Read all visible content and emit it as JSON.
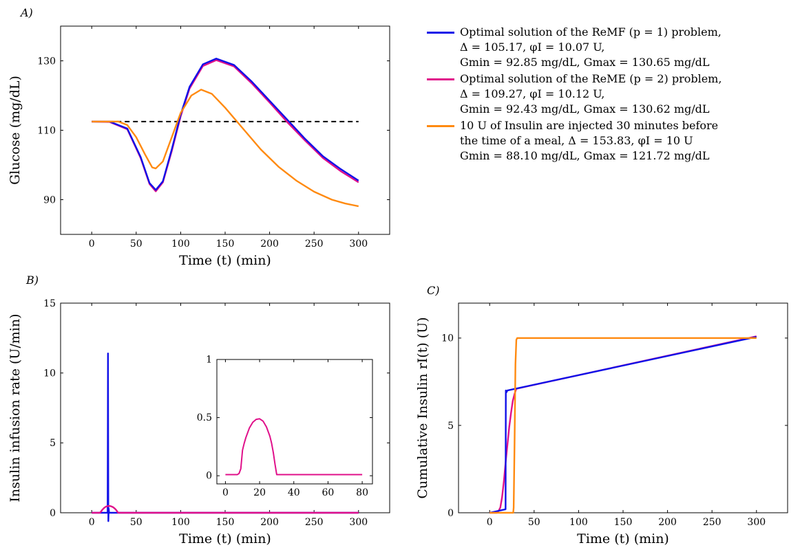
{
  "colors": {
    "blue": "#1010e8",
    "magenta": "#e0108a",
    "orange": "#ff8a10",
    "black": "#000000"
  },
  "panels": {
    "a": "A)",
    "b": "B)",
    "c": "C)"
  },
  "legend": [
    {
      "series": "ReMF",
      "color": "#1010e8",
      "lines": [
        "Optimal solution of the ReMF (p = 1) problem,",
        "Δ = 105.17, φI = 10.07 U,",
        "Gmin = 92.85 mg/dL, Gmax = 130.65 mg/dL"
      ]
    },
    {
      "series": "ReME",
      "color": "#e0108a",
      "lines": [
        "Optimal solution of the ReME (p = 2) problem,",
        "Δ = 109.27, φI = 10.12 U,",
        "Gmin = 92.43 mg/dL, Gmax = 130.62 mg/dL"
      ]
    },
    {
      "series": "Injection",
      "color": "#ff8a10",
      "lines": [
        "10 U of Insulin are injected 30 minutes before",
        "the time of a meal, Δ = 153.83, φI = 10 U",
        "Gmin = 88.10 mg/dL, Gmax = 121.72 mg/dL"
      ]
    }
  ],
  "chart_data": [
    {
      "id": "A",
      "type": "line",
      "xlabel": "Time (t) (min)",
      "ylabel": "Glucose (mg/dL)",
      "xlim": [
        -35,
        335
      ],
      "ylim": [
        80,
        140
      ],
      "xticks": [
        0,
        50,
        100,
        150,
        200,
        250,
        300
      ],
      "yticks": [
        90,
        110,
        130
      ],
      "series": [
        {
          "color": "#000000",
          "dashed": true,
          "x": [
            0,
            300
          ],
          "y": [
            112.5,
            112.5
          ]
        },
        {
          "color": "#e0108a",
          "x": [
            0,
            20,
            40,
            55,
            65,
            72,
            80,
            90,
            100,
            110,
            125,
            140,
            160,
            180,
            200,
            220,
            240,
            260,
            280,
            300
          ],
          "y": [
            112.5,
            112.4,
            110.3,
            102,
            94.5,
            92.4,
            95,
            104,
            114,
            122,
            128.5,
            130.2,
            128.4,
            123.5,
            118,
            112.3,
            107,
            102,
            98.2,
            95
          ]
        },
        {
          "color": "#1010e8",
          "x": [
            0,
            20,
            40,
            55,
            65,
            72,
            80,
            90,
            100,
            110,
            125,
            140,
            160,
            180,
            200,
            220,
            240,
            260,
            280,
            300
          ],
          "y": [
            112.5,
            112.5,
            110.5,
            102.3,
            94.8,
            92.8,
            95.3,
            104.5,
            114.5,
            122.5,
            129,
            130.65,
            128.8,
            124,
            118.5,
            113,
            107.5,
            102.5,
            98.8,
            95.5
          ]
        },
        {
          "color": "#ff8a10",
          "x": [
            0,
            30,
            40,
            50,
            60,
            68,
            72,
            80,
            90,
            100,
            112,
            123,
            135,
            150,
            170,
            190,
            210,
            230,
            250,
            270,
            285,
            300
          ],
          "y": [
            112.5,
            112.5,
            111.5,
            108,
            103,
            99.3,
            99,
            101,
            108,
            115,
            120,
            121.7,
            120.5,
            116.5,
            110.5,
            104.5,
            99.5,
            95.5,
            92.3,
            90,
            88.9,
            88.1
          ]
        }
      ]
    },
    {
      "id": "B",
      "type": "line",
      "xlabel": "Time (t) (min)",
      "ylabel": "Insulin infusion rate (U/min)",
      "xlim": [
        -35,
        335
      ],
      "ylim": [
        0,
        15
      ],
      "xticks": [
        0,
        50,
        100,
        150,
        200,
        250,
        300
      ],
      "yticks": [
        0,
        5,
        10,
        15
      ],
      "series": [
        {
          "color": "#1010e8",
          "x": [
            0,
            17.9,
            18.3,
            18.7,
            19.1,
            19.5,
            300
          ],
          "y": [
            0,
            0,
            11.4,
            -0.6,
            0.3,
            0,
            0
          ]
        },
        {
          "color": "#e0108a",
          "x": [
            0,
            9,
            10,
            12,
            14,
            16,
            18,
            20,
            22,
            24,
            26,
            28,
            29,
            30,
            300
          ],
          "y": [
            0,
            0,
            0.05,
            0.22,
            0.35,
            0.44,
            0.48,
            0.49,
            0.46,
            0.4,
            0.3,
            0.16,
            0.05,
            0,
            0
          ]
        }
      ]
    },
    {
      "id": "B-inset",
      "type": "line",
      "xlim": [
        -5,
        86
      ],
      "ylim": [
        -0.07,
        1
      ],
      "xticks": [
        0,
        20,
        40,
        60,
        80
      ],
      "yticks": [
        0,
        0.5,
        1
      ],
      "series": [
        {
          "color": "#e0108a",
          "x": [
            0,
            7,
            8,
            9,
            10,
            11,
            12,
            14,
            16,
            18,
            20,
            22,
            24,
            26,
            27,
            28,
            29,
            30,
            80
          ],
          "y": [
            0.01,
            0.01,
            0.02,
            0.06,
            0.22,
            0.28,
            0.33,
            0.41,
            0.46,
            0.485,
            0.49,
            0.47,
            0.42,
            0.34,
            0.28,
            0.2,
            0.1,
            0.01,
            0.01
          ]
        }
      ]
    },
    {
      "id": "C",
      "type": "line",
      "xlabel": "Time (t) (min)",
      "ylabel": "Cumulative Insulin rI(t) (U)",
      "xlim": [
        -35,
        335
      ],
      "ylim": [
        0,
        12
      ],
      "xticks": [
        0,
        50,
        100,
        150,
        200,
        250,
        300
      ],
      "yticks": [
        0,
        5,
        10
      ],
      "series": [
        {
          "color": "#e0108a",
          "x": [
            0,
            8,
            10,
            12,
            14,
            16,
            18,
            20,
            22,
            24,
            26,
            28,
            30,
            300
          ],
          "y": [
            0,
            0,
            0.1,
            0.3,
            0.9,
            1.8,
            2.9,
            3.9,
            4.9,
            5.7,
            6.4,
            6.8,
            7.1,
            10.1
          ]
        },
        {
          "color": "#1010e8",
          "x": [
            0,
            17.9,
            18.2,
            19,
            20,
            300
          ],
          "y": [
            0,
            0.2,
            7.0,
            6.9,
            7.0,
            10.07
          ]
        },
        {
          "color": "#ff8a10",
          "x": [
            0,
            26.5,
            27,
            28,
            29,
            30,
            31,
            300
          ],
          "y": [
            0,
            0,
            0.3,
            4,
            8.5,
            9.9,
            10,
            10
          ]
        }
      ]
    }
  ]
}
